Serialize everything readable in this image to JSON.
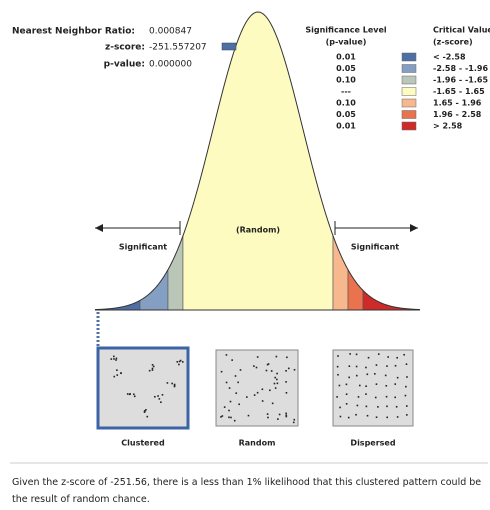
{
  "summary": {
    "ratio_label": "Nearest Neighbor Ratio:",
    "ratio": "0.000847",
    "z_label": "z-score:",
    "z": "-251.557207",
    "p_label": "p-value:",
    "p": "0.000000"
  },
  "legend": {
    "p_header": [
      "Significance Level",
      "(p-value)"
    ],
    "z_header": [
      "Critical Value",
      "(z-score)"
    ],
    "rows": [
      {
        "p": "0.01",
        "z": "< -2.58",
        "color": "#4d6fa3"
      },
      {
        "p": "0.05",
        "z": "-2.58 - -1.96",
        "color": "#849fc2"
      },
      {
        "p": "0.10",
        "z": "-1.96 - -1.65",
        "color": "#b9c6b8"
      },
      {
        "p": "---",
        "z": "-1.65 - 1.65",
        "color": "#fdfbbf"
      },
      {
        "p": "0.10",
        "z": "1.65 - 1.96",
        "color": "#f6b88c"
      },
      {
        "p": "0.05",
        "z": "1.96 - 2.58",
        "color": "#e9734f"
      },
      {
        "p": "0.01",
        "z": "> 2.58",
        "color": "#cf2a2a"
      }
    ]
  },
  "curve": {
    "middle": "(Random)",
    "left": "Significant",
    "right": "Significant"
  },
  "patterns": [
    "Clustered",
    "Random",
    "Dispersed"
  ],
  "conclusion": "Given the z-score of -251.56, there is a less than 1% likelihood that this clustered pattern could be the result of random chance."
}
